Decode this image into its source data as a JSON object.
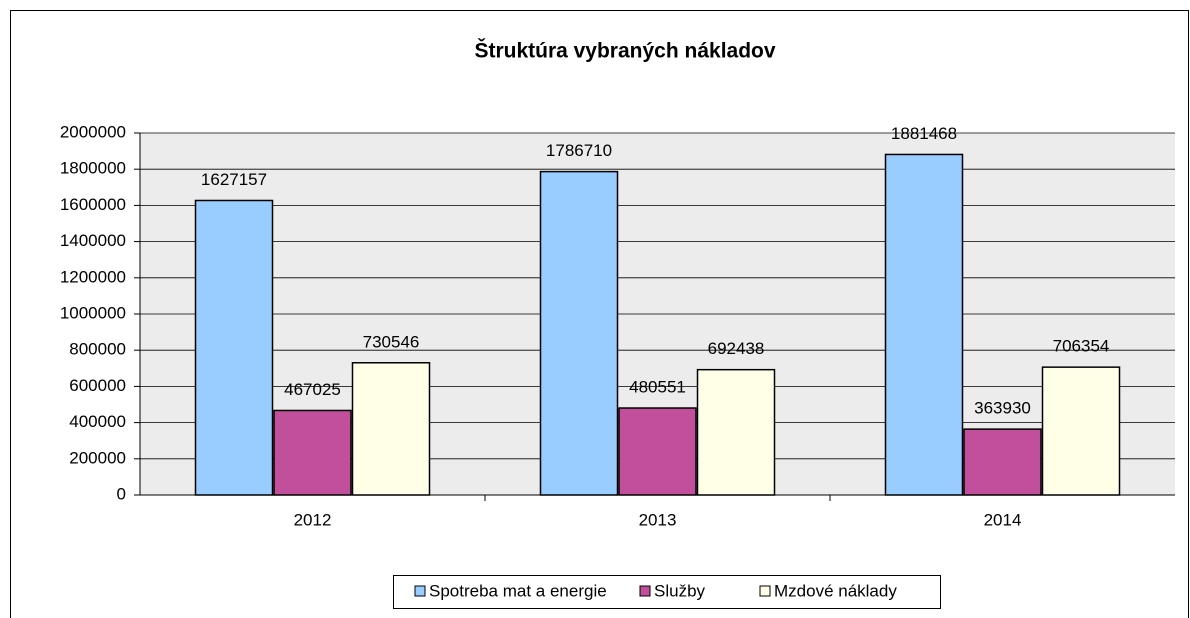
{
  "chart_data": {
    "type": "bar",
    "title": "Štruktúra vybraných nákladov",
    "categories": [
      "2012",
      "2013",
      "2014"
    ],
    "series": [
      {
        "name": "Spotreba mat a energie",
        "color": "#99ccff",
        "values": [
          1627157,
          1786710,
          1881468
        ]
      },
      {
        "name": "Služby",
        "color": "#c24f9b",
        "values": [
          467025,
          480551,
          363930
        ]
      },
      {
        "name": "Mzdové náklady",
        "color": "#ffffe8",
        "values": [
          730546,
          692438,
          706354
        ]
      }
    ],
    "ylim": [
      0,
      2000000
    ],
    "yticks": [
      0,
      200000,
      400000,
      600000,
      800000,
      1000000,
      1200000,
      1400000,
      1600000,
      1800000,
      2000000
    ],
    "grid": true,
    "legend": "bottom",
    "data_labels": true
  }
}
